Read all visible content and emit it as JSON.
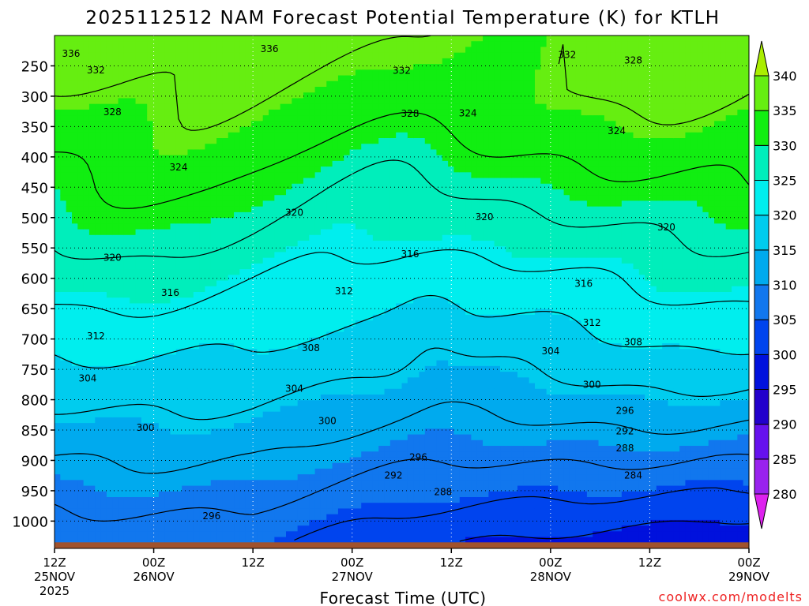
{
  "chart_data": {
    "type": "heatmap",
    "title": "2025112512 NAM Forecast Potential Temperature (K) for KTLH",
    "xlabel": "Forecast Time (UTC)",
    "ylabel": "",
    "credit": "coolwx.com/modelts",
    "x_ticks": [
      {
        "hours": 0,
        "line1": "12Z",
        "line2": "25NOV",
        "line3": "2025"
      },
      {
        "hours": 12,
        "line1": "00Z",
        "line2": "26NOV",
        "line3": ""
      },
      {
        "hours": 24,
        "line1": "12Z",
        "line2": "",
        "line3": ""
      },
      {
        "hours": 36,
        "line1": "00Z",
        "line2": "27NOV",
        "line3": ""
      },
      {
        "hours": 48,
        "line1": "12Z",
        "line2": "",
        "line3": ""
      },
      {
        "hours": 60,
        "line1": "00Z",
        "line2": "28NOV",
        "line3": ""
      },
      {
        "hours": 72,
        "line1": "12Z",
        "line2": "",
        "line3": ""
      },
      {
        "hours": 84,
        "line1": "00Z",
        "line2": "29NOV",
        "line3": ""
      }
    ],
    "x_range_hours": [
      0,
      84
    ],
    "y_axis": {
      "unit": "hPa",
      "top": 200,
      "bottom": 1045,
      "ground": 1035,
      "ticks": [
        250,
        300,
        350,
        400,
        450,
        500,
        550,
        600,
        650,
        700,
        750,
        800,
        850,
        900,
        950,
        1000
      ]
    },
    "colorbar": {
      "ticks": [
        280,
        285,
        290,
        295,
        300,
        305,
        310,
        315,
        320,
        325,
        330,
        335,
        340
      ],
      "bins": [
        {
          "from": 275,
          "to": 280,
          "color": "#dd22ee"
        },
        {
          "from": 280,
          "to": 285,
          "color": "#9922ee"
        },
        {
          "from": 285,
          "to": 290,
          "color": "#6611ee"
        },
        {
          "from": 290,
          "to": 295,
          "color": "#2200cc"
        },
        {
          "from": 295,
          "to": 300,
          "color": "#0011dd"
        },
        {
          "from": 300,
          "to": 305,
          "color": "#0044ee"
        },
        {
          "from": 305,
          "to": 310,
          "color": "#1177ee"
        },
        {
          "from": 310,
          "to": 315,
          "color": "#00aaee"
        },
        {
          "from": 315,
          "to": 320,
          "color": "#00ccee"
        },
        {
          "from": 320,
          "to": 325,
          "color": "#00eeee"
        },
        {
          "from": 325,
          "to": 330,
          "color": "#00eebb"
        },
        {
          "from": 330,
          "to": 335,
          "color": "#11ee11"
        },
        {
          "from": 335,
          "to": 340,
          "color": "#66ee11"
        },
        {
          "from": 340,
          "to": 345,
          "color": "#aaee00"
        }
      ]
    },
    "ground_color": "#a0522d",
    "isentrope_interval_k": 4,
    "contour_labels": [
      {
        "value": 336,
        "hours": 2,
        "pressure": 230
      },
      {
        "value": 336,
        "hours": 26,
        "pressure": 222
      },
      {
        "value": 332,
        "hours": 5,
        "pressure": 257
      },
      {
        "value": 332,
        "hours": 42,
        "pressure": 258
      },
      {
        "value": 332,
        "hours": 62,
        "pressure": 232
      },
      {
        "value": 328,
        "hours": 70,
        "pressure": 241
      },
      {
        "value": 328,
        "hours": 7,
        "pressure": 326
      },
      {
        "value": 328,
        "hours": 43,
        "pressure": 329
      },
      {
        "value": 324,
        "hours": 50,
        "pressure": 328
      },
      {
        "value": 324,
        "hours": 68,
        "pressure": 357
      },
      {
        "value": 324,
        "hours": 15,
        "pressure": 417
      },
      {
        "value": 320,
        "hours": 29,
        "pressure": 492
      },
      {
        "value": 320,
        "hours": 52,
        "pressure": 499
      },
      {
        "value": 320,
        "hours": 74,
        "pressure": 516
      },
      {
        "value": 320,
        "hours": 7,
        "pressure": 566
      },
      {
        "value": 316,
        "hours": 43,
        "pressure": 560
      },
      {
        "value": 316,
        "hours": 64,
        "pressure": 609
      },
      {
        "value": 316,
        "hours": 14,
        "pressure": 624
      },
      {
        "value": 312,
        "hours": 35,
        "pressure": 621
      },
      {
        "value": 312,
        "hours": 65,
        "pressure": 673
      },
      {
        "value": 312,
        "hours": 5,
        "pressure": 695
      },
      {
        "value": 308,
        "hours": 31,
        "pressure": 715
      },
      {
        "value": 308,
        "hours": 70,
        "pressure": 705
      },
      {
        "value": 304,
        "hours": 4,
        "pressure": 765
      },
      {
        "value": 304,
        "hours": 29,
        "pressure": 782
      },
      {
        "value": 304,
        "hours": 60,
        "pressure": 720
      },
      {
        "value": 300,
        "hours": 65,
        "pressure": 775
      },
      {
        "value": 300,
        "hours": 11,
        "pressure": 846
      },
      {
        "value": 300,
        "hours": 33,
        "pressure": 835
      },
      {
        "value": 296,
        "hours": 69,
        "pressure": 818
      },
      {
        "value": 296,
        "hours": 44,
        "pressure": 895
      },
      {
        "value": 296,
        "hours": 19,
        "pressure": 992
      },
      {
        "value": 292,
        "hours": 69,
        "pressure": 852
      },
      {
        "value": 292,
        "hours": 41,
        "pressure": 925
      },
      {
        "value": 288,
        "hours": 69,
        "pressure": 880
      },
      {
        "value": 288,
        "hours": 47,
        "pressure": 952
      },
      {
        "value": 284,
        "hours": 70,
        "pressure": 925
      }
    ]
  }
}
